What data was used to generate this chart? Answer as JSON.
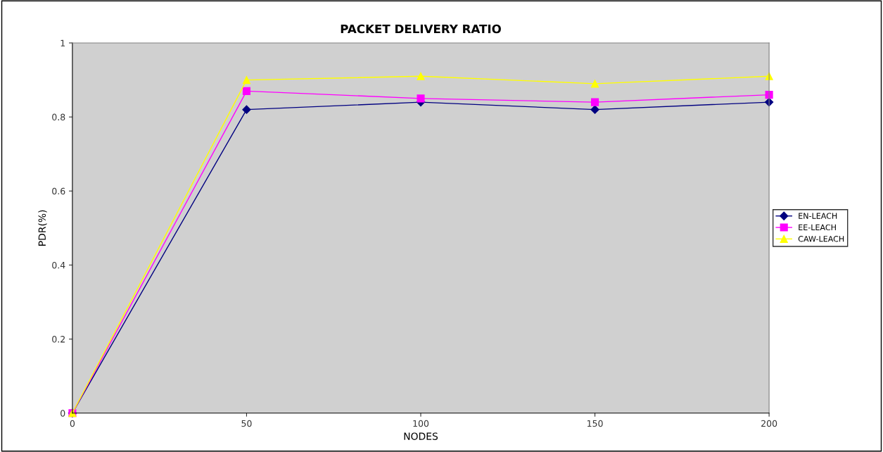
{
  "chart_data": {
    "type": "line",
    "title": "PACKET DELIVERY RATIO",
    "xlabel": "NODES",
    "ylabel": "PDR(%)",
    "x": [
      0,
      50,
      100,
      150,
      200
    ],
    "series": [
      {
        "name": "EN-LEACH",
        "color": "#000080",
        "marker": "diamond",
        "values": [
          0,
          0.82,
          0.84,
          0.82,
          0.84
        ]
      },
      {
        "name": "EE-LEACH",
        "color": "#ff00ff",
        "marker": "square",
        "values": [
          0,
          0.87,
          0.85,
          0.84,
          0.86
        ]
      },
      {
        "name": "CAW-LEACH",
        "color": "#ffff00",
        "marker": "triangle",
        "values": [
          0,
          0.9,
          0.91,
          0.89,
          0.91
        ]
      }
    ],
    "xlim": [
      0,
      200
    ],
    "xticks": [
      0,
      50,
      100,
      150,
      200
    ],
    "ylim": [
      0,
      1
    ],
    "yticks": [
      0,
      0.2,
      0.4,
      0.6,
      0.8,
      1
    ],
    "grid": false,
    "legend": "right",
    "line_style": "solid"
  }
}
